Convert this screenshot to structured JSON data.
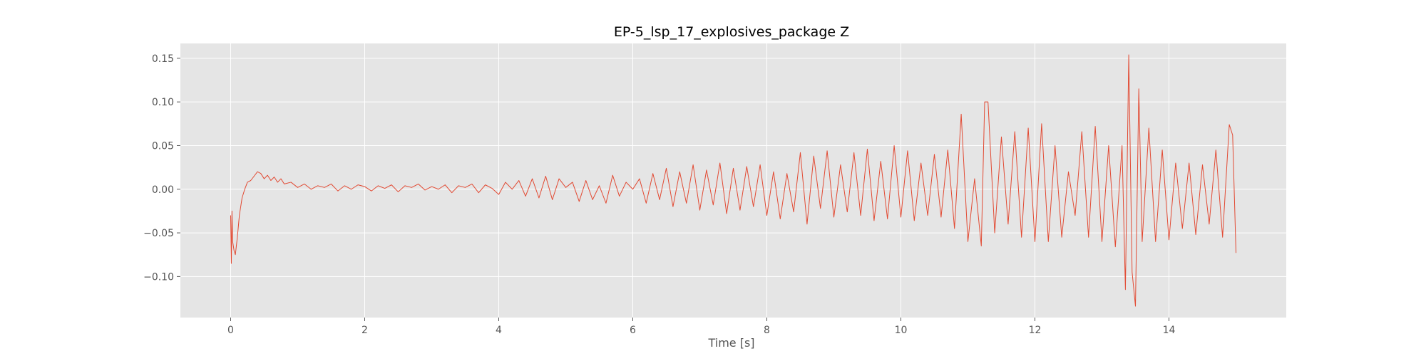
{
  "chart_data": {
    "type": "line",
    "title": "EP-5_lsp_17_explosives_package Z",
    "xlabel": "Time [s]",
    "ylabel": "",
    "xlim": [
      -0.75,
      15.75
    ],
    "ylim": [
      -0.147,
      0.167
    ],
    "x_ticks": [
      0,
      2,
      4,
      6,
      8,
      10,
      12,
      14
    ],
    "x_tick_labels": [
      "0",
      "2",
      "4",
      "6",
      "8",
      "10",
      "12",
      "14"
    ],
    "y_ticks": [
      -0.1,
      -0.05,
      0.0,
      0.05,
      0.1,
      0.15
    ],
    "y_tick_labels": [
      "−0.10",
      "−0.05",
      "0.00",
      "0.05",
      "0.10",
      "0.15"
    ],
    "grid": true,
    "colors": {
      "line": "#e24a33",
      "plot_background": "#e5e5e5",
      "grid": "#ffffff"
    },
    "series": [
      {
        "x": [
          0,
          0.01,
          0.02,
          0.03,
          0.05,
          0.07,
          0.1,
          0.13,
          0.17,
          0.21,
          0.25,
          0.3,
          0.35,
          0.4,
          0.45,
          0.5,
          0.55,
          0.6,
          0.65,
          0.7,
          0.75,
          0.8,
          0.9,
          1.0,
          1.1,
          1.2,
          1.3,
          1.4,
          1.5,
          1.6,
          1.7,
          1.8,
          1.9,
          2.0,
          2.1,
          2.2,
          2.3,
          2.4,
          2.5,
          2.6,
          2.7,
          2.8,
          2.9,
          3.0,
          3.1,
          3.2,
          3.3,
          3.4,
          3.5,
          3.6,
          3.7,
          3.8,
          3.9,
          4.0,
          4.1,
          4.2,
          4.3,
          4.4,
          4.5,
          4.6,
          4.7,
          4.8,
          4.9,
          5.0,
          5.1,
          5.2,
          5.3,
          5.4,
          5.5,
          5.6,
          5.7,
          5.8,
          5.9,
          6.0,
          6.1,
          6.2,
          6.3,
          6.4,
          6.5,
          6.6,
          6.7,
          6.8,
          6.9,
          7.0,
          7.1,
          7.2,
          7.3,
          7.4,
          7.5,
          7.6,
          7.7,
          7.8,
          7.9,
          8.0,
          8.1,
          8.2,
          8.3,
          8.4,
          8.5,
          8.6,
          8.7,
          8.8,
          8.9,
          9.0,
          9.1,
          9.2,
          9.3,
          9.4,
          9.5,
          9.6,
          9.7,
          9.8,
          9.9,
          10.0,
          10.1,
          10.2,
          10.3,
          10.4,
          10.5,
          10.6,
          10.7,
          10.8,
          10.9,
          11.0,
          11.1,
          11.2,
          11.25,
          11.3,
          11.4,
          11.5,
          11.6,
          11.7,
          11.8,
          11.9,
          12.0,
          12.1,
          12.2,
          12.3,
          12.4,
          12.5,
          12.6,
          12.7,
          12.8,
          12.9,
          13.0,
          13.1,
          13.2,
          13.3,
          13.35,
          13.4,
          13.45,
          13.5,
          13.55,
          13.6,
          13.7,
          13.8,
          13.9,
          14.0,
          14.1,
          14.2,
          14.3,
          14.4,
          14.5,
          14.6,
          14.7,
          14.8,
          14.9,
          14.95,
          15.0
        ],
        "y": [
          -0.03,
          -0.085,
          -0.025,
          -0.06,
          -0.07,
          -0.075,
          -0.055,
          -0.03,
          -0.01,
          0.0,
          0.008,
          0.01,
          0.015,
          0.02,
          0.018,
          0.012,
          0.016,
          0.01,
          0.014,
          0.008,
          0.012,
          0.006,
          0.008,
          0.002,
          0.006,
          0.0,
          0.004,
          0.002,
          0.006,
          -0.002,
          0.004,
          0.0,
          0.005,
          0.003,
          -0.002,
          0.004,
          0.001,
          0.005,
          -0.003,
          0.004,
          0.002,
          0.006,
          -0.001,
          0.003,
          0.0,
          0.005,
          -0.004,
          0.004,
          0.002,
          0.006,
          -0.004,
          0.005,
          0.001,
          -0.006,
          0.008,
          0.0,
          0.01,
          -0.008,
          0.012,
          -0.01,
          0.015,
          -0.012,
          0.012,
          0.002,
          0.008,
          -0.014,
          0.01,
          -0.012,
          0.004,
          -0.016,
          0.016,
          -0.008,
          0.008,
          0.0,
          0.012,
          -0.016,
          0.018,
          -0.012,
          0.024,
          -0.02,
          0.02,
          -0.016,
          0.028,
          -0.024,
          0.022,
          -0.018,
          0.03,
          -0.028,
          0.024,
          -0.024,
          0.026,
          -0.02,
          0.028,
          -0.03,
          0.02,
          -0.034,
          0.018,
          -0.026,
          0.042,
          -0.04,
          0.038,
          -0.022,
          0.044,
          -0.032,
          0.028,
          -0.026,
          0.042,
          -0.03,
          0.046,
          -0.036,
          0.032,
          -0.034,
          0.05,
          -0.032,
          0.044,
          -0.036,
          0.03,
          -0.03,
          0.04,
          -0.032,
          0.045,
          -0.045,
          0.086,
          -0.06,
          0.012,
          -0.065,
          0.1,
          0.1,
          -0.05,
          0.06,
          -0.04,
          0.066,
          -0.055,
          0.07,
          -0.06,
          0.075,
          -0.06,
          0.05,
          -0.055,
          0.02,
          -0.03,
          0.066,
          -0.055,
          0.072,
          -0.06,
          0.05,
          -0.066,
          0.05,
          -0.115,
          0.154,
          -0.095,
          -0.134,
          0.115,
          -0.06,
          0.07,
          -0.06,
          0.045,
          -0.058,
          0.03,
          -0.045,
          0.03,
          -0.052,
          0.028,
          -0.04,
          0.045,
          -0.055,
          0.074,
          0.062,
          -0.073
        ]
      }
    ]
  }
}
